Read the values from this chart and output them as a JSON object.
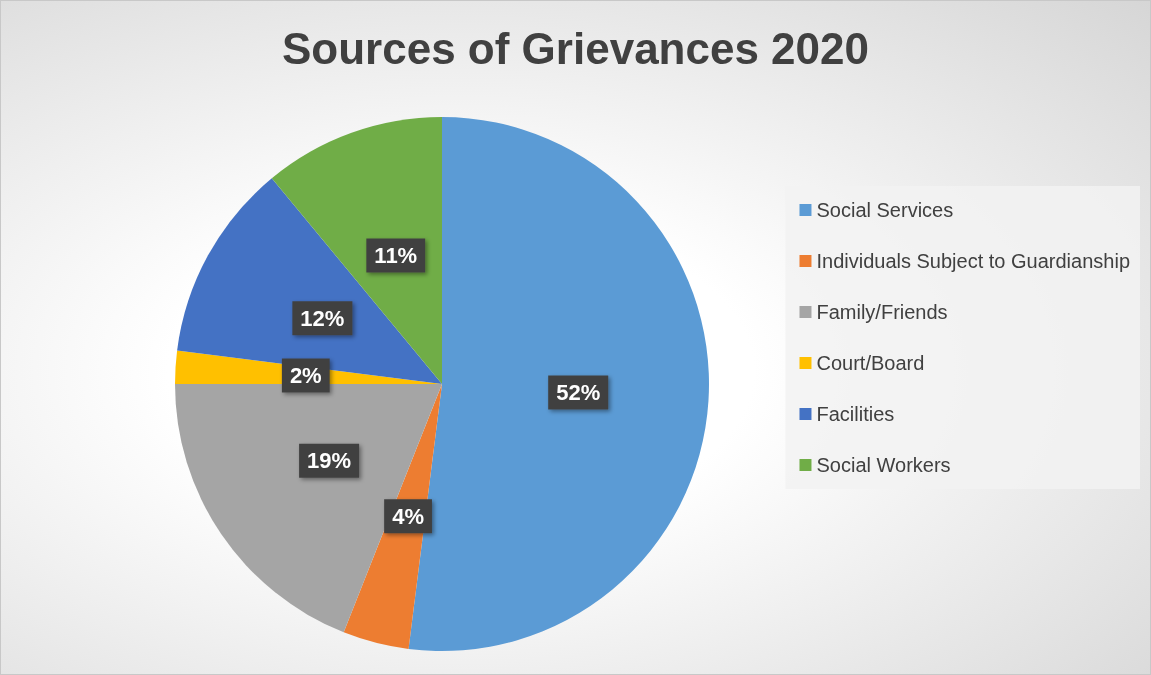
{
  "chart_data": {
    "type": "pie",
    "title": "Sources of Grievances 2020",
    "categories": [
      "Social Services",
      "Individuals Subject to Guardianship",
      "Family/Friends",
      "Court/Board",
      "Facilities",
      "Social Workers"
    ],
    "values": [
      52,
      4,
      19,
      2,
      12,
      11
    ],
    "colors": [
      "#5b9bd5",
      "#ed7d31",
      "#a5a5a5",
      "#ffc000",
      "#4472c4",
      "#70ad47"
    ],
    "value_labels": [
      "52%",
      "4%",
      "19%",
      "2%",
      "12%",
      "11%"
    ],
    "legend": "right"
  }
}
